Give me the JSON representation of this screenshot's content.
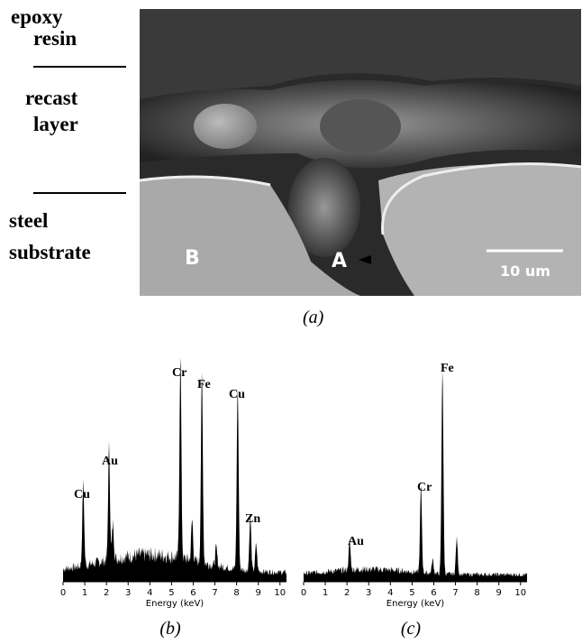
{
  "panel_a": {
    "labels": [
      "epoxy",
      "resin",
      "recast",
      "layer",
      "steel",
      "substrate"
    ],
    "image_labels": [
      "B",
      "A",
      "10 um"
    ],
    "caption": "(a)"
  },
  "panel_b": {
    "peaks": [
      "Cu",
      "Au",
      "Cr",
      "Fe",
      "Cu",
      "Zn"
    ],
    "x_label": "Energy (keV)",
    "xlim": [
      0,
      10.3
    ],
    "xticks": [
      0,
      1,
      2,
      3,
      4,
      5,
      6,
      7,
      8,
      9,
      10
    ],
    "caption": "(b)"
  },
  "panel_c": {
    "peaks": [
      "Au",
      "Cr",
      "Fe"
    ],
    "x_label": "Energy (keV)",
    "xlim": [
      0,
      10.3
    ],
    "xticks": [
      0,
      1,
      2,
      3,
      4,
      5,
      6,
      7,
      8,
      9,
      10
    ],
    "caption": "(c)"
  }
}
